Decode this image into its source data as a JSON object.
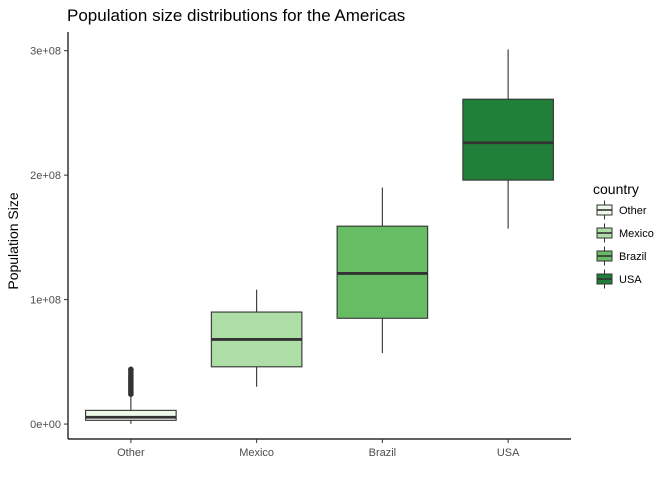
{
  "chart_data": {
    "type": "boxplot",
    "title": "Population size distributions for the Americas",
    "xlabel": "",
    "ylabel": "Population Size",
    "categories": [
      "Other",
      "Mexico",
      "Brazil",
      "USA"
    ],
    "y_ticks": [
      0,
      100000000,
      200000000,
      300000000
    ],
    "y_tick_labels": [
      "0e+00",
      "1e+08",
      "2e+08",
      "3e+08"
    ],
    "ylim": [
      -12000000,
      315000000
    ],
    "grid": false,
    "legend": {
      "title": "country",
      "position": "right",
      "entries": [
        "Other",
        "Mexico",
        "Brazil",
        "USA"
      ]
    },
    "colors": {
      "Other": "#edf8e9",
      "Mexico": "#addea5",
      "Brazil": "#66bd63",
      "USA": "#207f38",
      "outline": "#333333"
    },
    "boxes": [
      {
        "category": "Other",
        "whisker_low": 200000,
        "q1": 3000000,
        "median": 5500000,
        "q3": 11000000,
        "whisker_high": 23000000,
        "outliers": [
          24000000,
          25500000,
          27000000,
          28500000,
          30000000,
          31500000,
          33000000,
          34500000,
          36000000,
          37500000,
          39000000,
          41000000,
          43000000,
          44000000
        ]
      },
      {
        "category": "Mexico",
        "whisker_low": 30000000,
        "q1": 46000000,
        "median": 68000000,
        "q3": 90000000,
        "whisker_high": 108000000,
        "outliers": []
      },
      {
        "category": "Brazil",
        "whisker_low": 57000000,
        "q1": 85000000,
        "median": 121000000,
        "q3": 159000000,
        "whisker_high": 190000000,
        "outliers": []
      },
      {
        "category": "USA",
        "whisker_low": 157000000,
        "q1": 196000000,
        "median": 226000000,
        "q3": 261000000,
        "whisker_high": 301000000,
        "outliers": []
      }
    ]
  }
}
